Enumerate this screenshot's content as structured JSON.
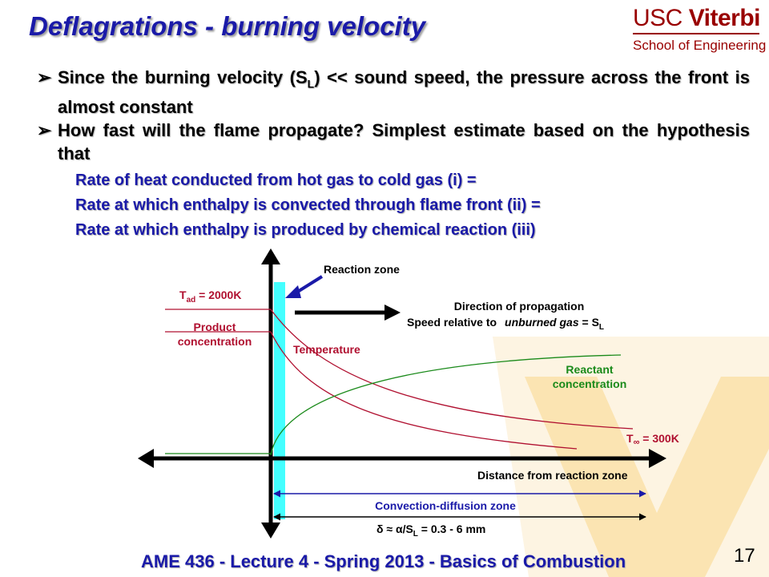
{
  "slide": {
    "title": "Deflagrations - burning velocity",
    "logo": {
      "usc": "USC",
      "viterbi": "Viterbi",
      "school": "School of Engineering"
    },
    "bullets": [
      {
        "arrow": "➢",
        "pre": "Since the burning velocity (S",
        "sub": "L",
        "post": ") << sound speed, the pressure across the front is almost constant"
      },
      {
        "arrow": "➢",
        "pre": "How fast will the flame propagate?  Simplest estimate based on the hypothesis that",
        "sub": "",
        "post": ""
      }
    ],
    "sub_lines": [
      "Rate of heat conducted from hot gas to cold gas (i) =",
      "Rate at which enthalpy is convected through flame front (ii) =",
      "Rate at which enthalpy is produced by chemical reaction (iii)"
    ],
    "footer": "AME 436 - Lecture 4 - Spring 2013 - Basics of Combustion",
    "page_number": "17"
  },
  "diagram": {
    "reaction_zone": "Reaction zone",
    "tad_T": "T",
    "tad_sub": "ad",
    "tad_val": " = 2000K",
    "product_1": "Product",
    "product_2": "concentration",
    "temperature": "Temperature",
    "direction": "Direction of propagation",
    "speed_1": "Speed relative to",
    "speed_2": "unburned gas",
    "speed_3": " = S",
    "speed_sub": "L",
    "reactant_1": "Reactant",
    "reactant_2": "concentration",
    "tinf_T": "T",
    "tinf_sym": "∞",
    "tinf_val": " = 300K",
    "distance": "Distance from reaction zone",
    "conv_diff": "Convection-diffusion zone",
    "delta_1": "δ ≈ ",
    "delta_alpha": "α",
    "delta_2": "/S",
    "delta_sub": "L",
    "delta_3": " = 0.3 - 6 mm",
    "colors": {
      "temperature": "#b01030",
      "reactant": "#1a8a1a",
      "reaction_zone": "#44ffff",
      "zone_arrow": "#1a1aa8"
    }
  }
}
